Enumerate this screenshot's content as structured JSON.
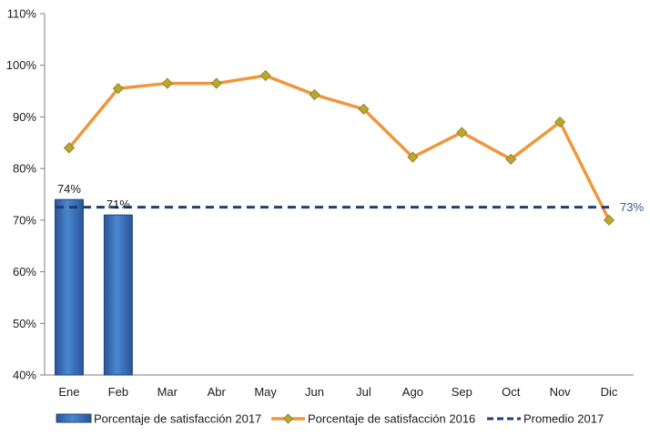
{
  "chart_data": {
    "type": "bar",
    "categories": [
      "Ene",
      "Feb",
      "Mar",
      "Abr",
      "May",
      "Jun",
      "Jul",
      "Ago",
      "Sep",
      "Oct",
      "Nov",
      "Dic"
    ],
    "ylim": [
      40,
      110
    ],
    "yticks": [
      "40%",
      "50%",
      "60%",
      "70%",
      "80%",
      "90%",
      "100%",
      "110%"
    ],
    "grid": false,
    "legend_position": "bottom",
    "series": [
      {
        "name": "Porcentaje de satisfacción 2017",
        "type": "bar",
        "color": "#3a70b8",
        "values": [
          74,
          71,
          null,
          null,
          null,
          null,
          null,
          null,
          null,
          null,
          null,
          null
        ],
        "data_labels": [
          "74%",
          "71%"
        ]
      },
      {
        "name": "Porcentaje de satisfacción 2016",
        "type": "line",
        "color": "#f0963c",
        "marker_color": "#b8a830",
        "values": [
          84,
          95.5,
          96.5,
          96.5,
          98,
          94.3,
          91.5,
          82.2,
          87,
          81.8,
          89,
          70
        ]
      },
      {
        "name": "Promedio 2017",
        "type": "line",
        "style": "dashed",
        "color": "#1f3f73",
        "values": [
          72.5,
          72.5,
          72.5,
          72.5,
          72.5,
          72.5,
          72.5,
          72.5,
          72.5,
          72.5,
          72.5,
          72.5
        ],
        "end_label": "73%",
        "end_label_color": "#3a5a8c"
      }
    ]
  }
}
